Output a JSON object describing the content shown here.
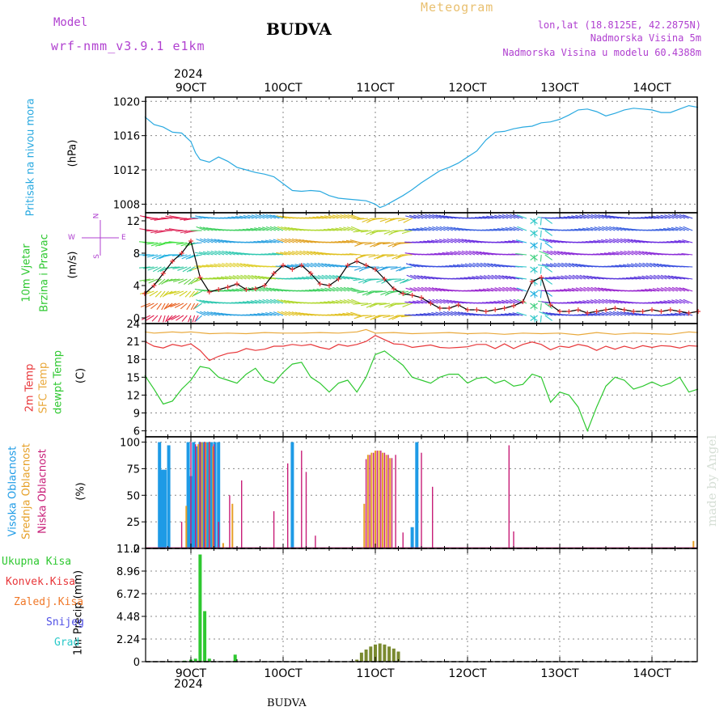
{
  "header": {
    "model_label": "Model",
    "model_name": "wrf-nmm_v3.9.1 e1km",
    "station": "BUDVA",
    "meteogram": "Meteogram",
    "lonlat": "lon,lat (18.8125E, 42.2875N)",
    "elevation": "Nadmorska Visina 5m",
    "model_elevation": "Nadmorska Visina u modelu 60.4388m",
    "footer_station": "BUDVA",
    "watermark": "made by Angel"
  },
  "colors": {
    "pressure": "#29a9e0",
    "temp2m": "#e8373a",
    "sfc_temp": "#e9a93c",
    "dewpt": "#2ec830",
    "high_cloud": "#1e9be6",
    "mid_cloud": "#e6a028",
    "low_cloud": "#c81e78",
    "rain_total": "#2ec830",
    "convective": "#e8373a",
    "frozen": "#f07828",
    "snow": "#5050e6",
    "graupel": "#28c8c8",
    "purple_text": "#b040d0"
  },
  "chart_data": [
    {
      "type": "line",
      "id": "pressure",
      "ylabel_1": "Pritisak na nivou mora",
      "ylabel_2": "(hPa)",
      "ylim": [
        1007,
        1020.5
      ],
      "yticks": [
        "1008",
        "1012",
        "1016",
        "1020"
      ],
      "xticks": [
        "9OCT",
        "10OCT",
        "11OCT",
        "12OCT",
        "13OCT",
        "14OCT"
      ],
      "xyear": "2024",
      "x": [
        8.5,
        8.6,
        8.7,
        8.8,
        8.9,
        9.0,
        9.05,
        9.1,
        9.2,
        9.3,
        9.4,
        9.5,
        9.6,
        9.7,
        9.8,
        9.9,
        10.0,
        10.1,
        10.2,
        10.3,
        10.4,
        10.5,
        10.6,
        10.7,
        10.8,
        10.9,
        11.0,
        11.05,
        11.1,
        11.2,
        11.3,
        11.4,
        11.5,
        11.6,
        11.7,
        11.8,
        11.9,
        12.0,
        12.1,
        12.2,
        12.3,
        12.4,
        12.5,
        12.6,
        12.7,
        12.8,
        12.9,
        13.0,
        13.1,
        13.2,
        13.3,
        13.4,
        13.5,
        13.6,
        13.7,
        13.8,
        13.9,
        14.0,
        14.1,
        14.2,
        14.3,
        14.4,
        14.5
      ],
      "y": [
        1018.2,
        1017.3,
        1017.0,
        1016.4,
        1016.3,
        1015.3,
        1014.0,
        1013.2,
        1012.9,
        1013.5,
        1013.0,
        1012.3,
        1012.0,
        1011.7,
        1011.5,
        1011.2,
        1010.4,
        1009.6,
        1009.5,
        1009.6,
        1009.5,
        1009.0,
        1008.7,
        1008.6,
        1008.5,
        1008.4,
        1008.0,
        1007.6,
        1007.8,
        1008.4,
        1009.0,
        1009.7,
        1010.5,
        1011.2,
        1011.9,
        1012.3,
        1012.8,
        1013.5,
        1014.2,
        1015.5,
        1016.4,
        1016.5,
        1016.8,
        1017.0,
        1017.1,
        1017.5,
        1017.6,
        1017.9,
        1018.4,
        1019.0,
        1019.1,
        1018.8,
        1018.3,
        1018.6,
        1019.0,
        1019.2,
        1019.1,
        1019.0,
        1018.7,
        1018.7,
        1019.1,
        1019.5,
        1019.3
      ]
    },
    {
      "type": "barbs",
      "id": "wind",
      "ylabel_1": "10m Vjetar",
      "ylabel_2": "Brzina i Pravac",
      "ylabel_3": "(m/s)",
      "compass_n": "N",
      "compass_s": "S",
      "compass_w": "W",
      "compass_e": "E",
      "ylim": [
        -0.7,
        13
      ],
      "yticks": [
        "0",
        "4",
        "8",
        "12"
      ],
      "x": [
        8.5,
        8.6,
        8.7,
        8.8,
        8.9,
        9.0,
        9.1,
        9.2,
        9.3,
        9.4,
        9.5,
        9.6,
        9.7,
        9.8,
        9.9,
        10.0,
        10.1,
        10.2,
        10.3,
        10.4,
        10.5,
        10.6,
        10.7,
        10.8,
        10.9,
        11.0,
        11.1,
        11.2,
        11.3,
        11.4,
        11.5,
        11.6,
        11.7,
        11.8,
        11.9,
        12.0,
        12.1,
        12.2,
        12.3,
        12.4,
        12.5,
        12.6,
        12.7,
        12.8,
        12.9,
        13.0,
        13.1,
        13.2,
        13.3,
        13.4,
        13.5,
        13.6,
        13.7,
        13.8,
        13.9,
        14.0,
        14.1,
        14.2,
        14.3,
        14.4,
        14.5
      ],
      "speed": [
        3.0,
        4.0,
        5.5,
        7.0,
        8.0,
        9.5,
        5.0,
        3.2,
        3.5,
        3.8,
        4.2,
        3.5,
        3.6,
        4.0,
        5.5,
        6.5,
        6.0,
        6.5,
        5.5,
        4.2,
        4.0,
        4.8,
        6.5,
        7.0,
        6.5,
        6.0,
        4.8,
        3.6,
        3.0,
        2.8,
        2.5,
        1.8,
        1.2,
        1.2,
        1.6,
        1.0,
        1.0,
        0.8,
        1.0,
        1.2,
        1.5,
        2.0,
        4.5,
        5.0,
        1.6,
        0.8,
        0.8,
        1.0,
        0.6,
        0.8,
        1.0,
        1.2,
        1.0,
        0.8,
        0.8,
        1.0,
        0.8,
        1.0,
        0.8,
        0.6,
        0.8
      ],
      "direction_label": "direction by band"
    },
    {
      "type": "line",
      "id": "temperature",
      "ylabel_1": "2m Temp",
      "ylabel_2": "SFC Temp",
      "ylabel_3": "dewpt Temp",
      "ylabel_4": "(C)",
      "ylim": [
        5,
        24
      ],
      "yticks": [
        "6",
        "9",
        "12",
        "15",
        "18",
        "21",
        "24"
      ],
      "series": [
        {
          "name": "SFC Temp",
          "x": [
            8.5,
            8.6,
            8.7,
            8.8,
            8.9,
            9.0,
            9.2,
            9.4,
            9.6,
            9.8,
            10.0,
            10.2,
            10.4,
            10.6,
            10.8,
            10.9,
            11.0,
            11.2,
            11.4,
            11.6,
            11.8,
            12.0,
            12.2,
            12.4,
            12.6,
            12.8,
            13.0,
            13.2,
            13.4,
            13.6,
            13.8,
            14.0,
            14.2,
            14.4,
            14.5
          ],
          "y": [
            22.6,
            22.4,
            22.5,
            22.6,
            22.5,
            22.6,
            22.3,
            22.4,
            22.3,
            22.5,
            22.4,
            22.4,
            22.5,
            22.4,
            22.6,
            23.0,
            22.4,
            22.5,
            22.3,
            22.4,
            22.5,
            22.3,
            22.4,
            22.2,
            22.4,
            22.3,
            22.4,
            22.1,
            22.5,
            22.2,
            22.4,
            22.3,
            22.2,
            22.6,
            22.5
          ]
        },
        {
          "name": "2m Temp",
          "x": [
            8.5,
            8.6,
            8.7,
            8.8,
            8.9,
            9.0,
            9.1,
            9.2,
            9.3,
            9.4,
            9.5,
            9.6,
            9.7,
            9.8,
            9.9,
            10.0,
            10.1,
            10.2,
            10.3,
            10.4,
            10.5,
            10.6,
            10.7,
            10.8,
            10.9,
            11.0,
            11.1,
            11.2,
            11.3,
            11.4,
            11.5,
            11.6,
            11.7,
            11.8,
            11.9,
            12.0,
            12.1,
            12.2,
            12.3,
            12.4,
            12.5,
            12.6,
            12.7,
            12.8,
            12.9,
            13.0,
            13.1,
            13.2,
            13.3,
            13.4,
            13.5,
            13.6,
            13.7,
            13.8,
            13.9,
            14.0,
            14.1,
            14.2,
            14.3,
            14.4,
            14.5
          ],
          "y": [
            21.0,
            20.2,
            19.9,
            20.5,
            20.2,
            20.6,
            19.5,
            17.8,
            18.5,
            19.0,
            19.2,
            19.8,
            19.5,
            19.7,
            20.2,
            20.2,
            20.5,
            20.3,
            20.5,
            20.0,
            19.7,
            20.5,
            20.2,
            20.5,
            21.0,
            22.0,
            21.3,
            20.6,
            20.5,
            20.0,
            20.2,
            20.4,
            20.0,
            19.9,
            20.0,
            20.1,
            20.5,
            20.5,
            19.8,
            20.6,
            19.8,
            20.5,
            20.9,
            20.5,
            19.6,
            20.2,
            20.0,
            20.5,
            20.2,
            19.5,
            20.2,
            19.7,
            20.2,
            19.8,
            20.3,
            20.0,
            20.3,
            20.2,
            19.9,
            20.3,
            20.2
          ]
        },
        {
          "name": "dewpt Temp",
          "x": [
            8.5,
            8.6,
            8.7,
            8.8,
            8.9,
            9.0,
            9.1,
            9.2,
            9.3,
            9.4,
            9.5,
            9.6,
            9.7,
            9.8,
            9.9,
            10.0,
            10.1,
            10.2,
            10.3,
            10.4,
            10.5,
            10.6,
            10.7,
            10.8,
            10.9,
            11.0,
            11.1,
            11.2,
            11.3,
            11.4,
            11.5,
            11.6,
            11.7,
            11.8,
            11.9,
            12.0,
            12.1,
            12.2,
            12.3,
            12.4,
            12.5,
            12.6,
            12.7,
            12.8,
            12.9,
            13.0,
            13.1,
            13.2,
            13.3,
            13.4,
            13.5,
            13.6,
            13.7,
            13.8,
            13.9,
            14.0,
            14.1,
            14.2,
            14.3,
            14.4,
            14.5
          ],
          "y": [
            15.3,
            13.0,
            10.5,
            11.0,
            13.0,
            14.5,
            16.8,
            16.5,
            15.0,
            14.5,
            14.0,
            15.5,
            16.5,
            14.5,
            14.0,
            15.8,
            17.2,
            17.5,
            15.0,
            14.0,
            12.5,
            14.0,
            14.5,
            12.5,
            15.0,
            18.8,
            19.4,
            18.2,
            17.0,
            15.0,
            14.5,
            14.0,
            15.0,
            15.5,
            15.5,
            14.0,
            14.8,
            15.0,
            14.0,
            14.5,
            13.5,
            13.8,
            15.5,
            15.0,
            10.8,
            12.5,
            12.0,
            10.0,
            6.0,
            10.0,
            13.5,
            15.0,
            14.5,
            13.0,
            13.5,
            14.2,
            13.5,
            14.0,
            15.0,
            12.5,
            13.0
          ]
        }
      ]
    },
    {
      "type": "bar",
      "id": "clouds",
      "ylabel_1": "Visoka Oblacnost",
      "ylabel_2": "Srednja Oblacnost",
      "ylabel_3": "Niska Oblacnost",
      "ylabel_4": "(%)",
      "ylim": [
        0,
        105
      ],
      "yticks": [
        "0",
        "25",
        "50",
        "75",
        "100"
      ],
      "series": [
        {
          "name": "Visoka Oblacnost",
          "x": [
            8.66,
            8.69,
            8.72,
            8.76,
            8.97,
            9.0,
            9.03,
            9.06,
            9.1,
            9.14,
            9.18,
            9.22,
            9.26,
            9.3,
            10.1,
            11.4,
            11.45
          ],
          "y": [
            100,
            74,
            74,
            97,
            100,
            68,
            100,
            96,
            100,
            100,
            100,
            100,
            100,
            100,
            100,
            20,
            100
          ]
        },
        {
          "name": "Srednja Oblacnost",
          "x": [
            8.95,
            9.08,
            9.12,
            9.16,
            9.2,
            9.24,
            9.35,
            9.45,
            10.88,
            10.92,
            10.96,
            11.0,
            11.04,
            11.08,
            11.12,
            11.16,
            14.45
          ],
          "y": [
            40,
            98,
            100,
            100,
            100,
            96,
            5,
            42,
            42,
            88,
            90,
            92,
            92,
            90,
            88,
            85,
            7
          ]
        },
        {
          "name": "Niska Oblacnost",
          "x": [
            8.9,
            9.0,
            9.05,
            9.1,
            9.15,
            9.2,
            9.25,
            9.3,
            9.42,
            9.55,
            9.9,
            10.05,
            10.2,
            10.25,
            10.35,
            10.9,
            10.94,
            10.98,
            11.02,
            11.06,
            11.1,
            11.14,
            11.18,
            11.22,
            11.3,
            11.5,
            11.62,
            12.45,
            12.5
          ],
          "y": [
            25,
            100,
            98,
            100,
            100,
            100,
            98,
            25,
            50,
            64,
            35,
            80,
            92,
            72,
            12,
            84,
            88,
            90,
            92,
            92,
            90,
            88,
            85,
            88,
            15,
            90,
            58,
            97,
            16
          ]
        }
      ]
    },
    {
      "type": "bar",
      "id": "precip",
      "ylabel_1": "1hr Precip (mm)",
      "legend": [
        "Ukupna Kisa",
        "Konvek.Kisa",
        "Zaledj.Kisa",
        "Snijeg",
        "Grad"
      ],
      "ylim": [
        0,
        11.2
      ],
      "yticks": [
        "0",
        "2.24",
        "4.48",
        "6.72",
        "8.96",
        "11.2"
      ],
      "xticks": [
        "9OCT",
        "10OCT",
        "11OCT",
        "12OCT",
        "13OCT",
        "14OCT"
      ],
      "xyear": "2024",
      "series": [
        {
          "name": "Ukupna Kisa",
          "x": [
            8.93,
            9.0,
            9.05,
            9.1,
            9.15,
            9.2,
            9.48
          ],
          "y": [
            0.1,
            0.2,
            0.3,
            10.6,
            5.0,
            0.3,
            0.7
          ]
        },
        {
          "name": "Konvek.Kisa",
          "x": [
            10.8,
            10.85,
            10.9,
            10.95,
            11.0,
            11.05,
            11.1,
            11.15,
            11.2,
            11.25
          ],
          "y": [
            0.2,
            0.9,
            1.2,
            1.5,
            1.7,
            1.8,
            1.7,
            1.5,
            1.3,
            1.0
          ]
        }
      ]
    }
  ]
}
